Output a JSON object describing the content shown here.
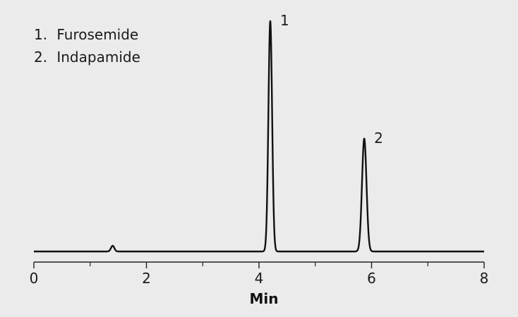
{
  "legend": [
    {
      "num": "1.",
      "name": "Furosemide"
    },
    {
      "num": "2.",
      "name": "Indapamide"
    }
  ],
  "chart_data": {
    "type": "line",
    "title": "",
    "xlabel": "Min",
    "ylabel": "",
    "xlim": [
      0,
      8
    ],
    "x_ticks_major": [
      0,
      2,
      4,
      6,
      8
    ],
    "x_ticks_minor": [
      1,
      3,
      5,
      7
    ],
    "grid": false,
    "baseline_level": 0,
    "y_max_reference": 100,
    "series": [
      {
        "baseline": 0,
        "peaks": [
          {
            "label": "",
            "rt": 1.4,
            "height": 2.5,
            "width": 0.03
          },
          {
            "label": "1",
            "rt": 4.2,
            "height": 100,
            "width": 0.033
          },
          {
            "label": "2",
            "rt": 5.87,
            "height": 49,
            "width": 0.04
          }
        ]
      }
    ],
    "peak_labels": [
      {
        "label": "1",
        "rt": 4.2
      },
      {
        "label": "2",
        "rt": 5.87
      }
    ]
  }
}
